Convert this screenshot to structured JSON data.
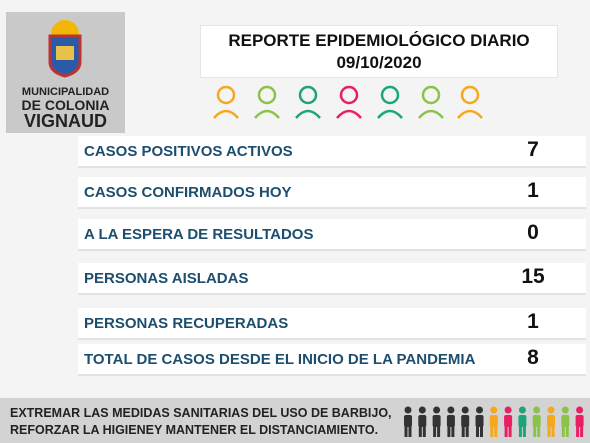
{
  "header": {
    "logo_lines": [
      "MUNICIPALIDAD",
      "DE COLONIA",
      "VIGNAUD"
    ],
    "title": "REPORTE EPIDEMIOLÓGICO DIARIO",
    "date": "09/10/2020"
  },
  "table": {
    "rows": [
      [
        "CASOS POSITIVOS ACTIVOS",
        "7"
      ],
      [
        "CASOS CONFIRMADOS HOY",
        "1"
      ],
      [
        "A LA ESPERA DE RESULTADOS",
        "0"
      ],
      [
        "PERSONAS AISLADAS",
        "15"
      ],
      [
        "PERSONAS RECUPERADAS",
        "1"
      ],
      [
        "TOTAL DE CASOS DESDE EL INICIO DE LA PANDEMIA",
        "8"
      ]
    ]
  },
  "footer": {
    "lines": [
      "EXTREMAR LAS MEDIDAS SANITARIAS DEL USO DE BARBIJO,",
      "REFORZAR LA HIGIENEY MANTENER EL DISTANCIAMIENTO."
    ]
  }
}
